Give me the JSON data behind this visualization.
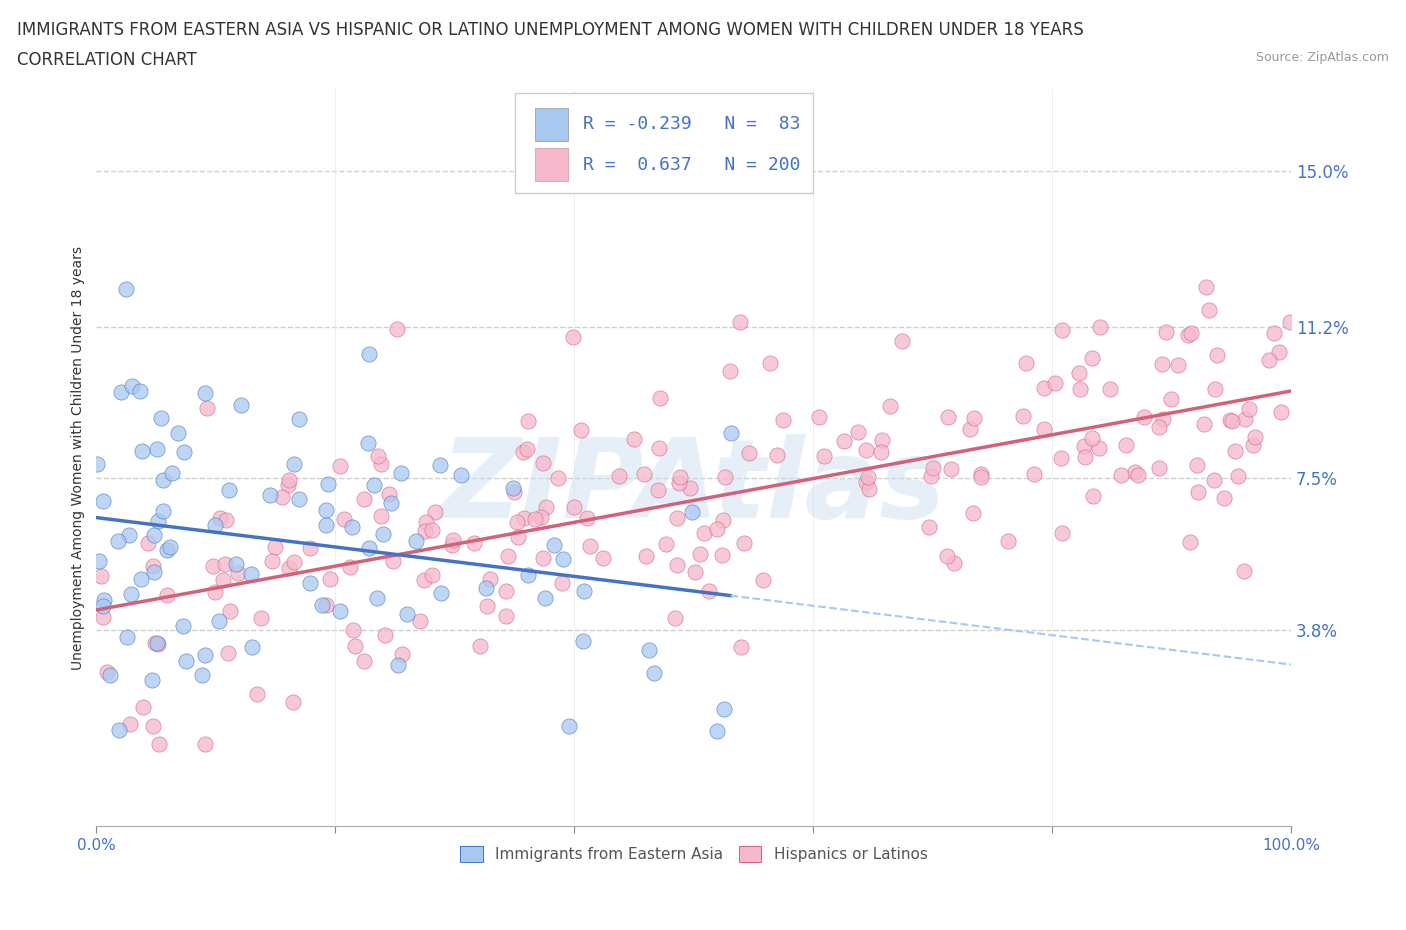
{
  "title_line1": "IMMIGRANTS FROM EASTERN ASIA VS HISPANIC OR LATINO UNEMPLOYMENT AMONG WOMEN WITH CHILDREN UNDER 18 YEARS",
  "title_line2": "CORRELATION CHART",
  "source": "Source: ZipAtlas.com",
  "ylabel": "Unemployment Among Women with Children Under 18 years",
  "xlim": [
    0,
    100
  ],
  "ylim": [
    -1,
    17
  ],
  "yticks": [
    3.8,
    7.5,
    11.2,
    15.0
  ],
  "series1_color": "#a8c8f0",
  "series2_color": "#f5b8cc",
  "trend1_color": "#4472c4",
  "trend2_color": "#d4607a",
  "dashed_color": "#a8c8f0",
  "R1": -0.239,
  "N1": 83,
  "R2": 0.637,
  "N2": 200,
  "legend_label1": "Immigrants from Eastern Asia",
  "legend_label2": "Hispanics or Latinos",
  "watermark": "ZIPAtlas",
  "background_color": "#ffffff",
  "grid_color": "#d0d0d0",
  "title_fontsize": 12,
  "yticklabel_color": "#4472c4"
}
